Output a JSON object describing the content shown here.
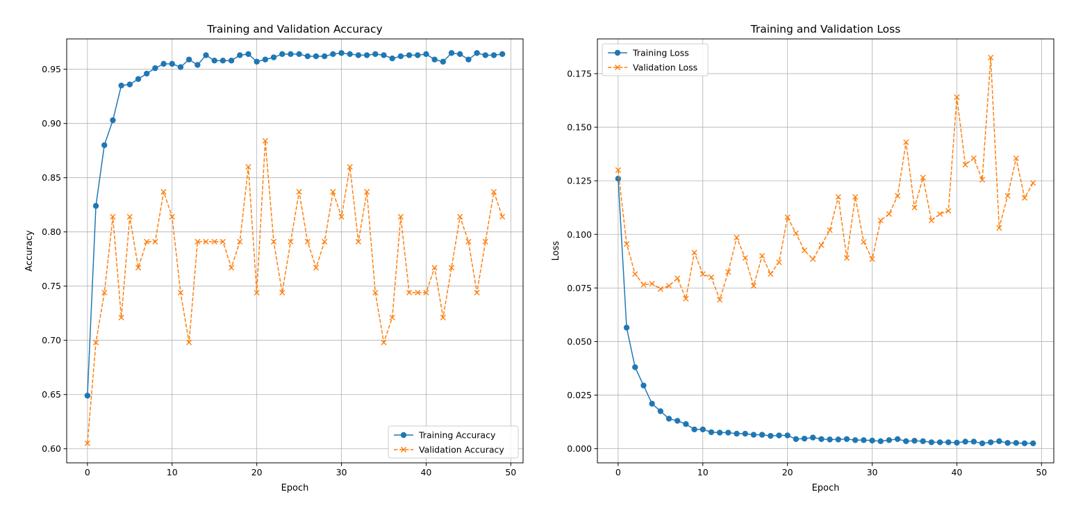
{
  "colors": {
    "training": "#1f77b4",
    "validation": "#ff7f0e",
    "grid": "#b0b0b0",
    "axis": "#000000"
  },
  "chart_data": [
    {
      "type": "line",
      "title": "Training and Validation Accuracy",
      "xlabel": "Epoch",
      "ylabel": "Accuracy",
      "xlim": [
        -2.45,
        51.45
      ],
      "ylim": [
        0.587,
        0.978
      ],
      "xticks": [
        0,
        10,
        20,
        30,
        40,
        50
      ],
      "yticks": [
        0.6,
        0.65,
        0.7,
        0.75,
        0.8,
        0.85,
        0.9,
        0.95
      ],
      "ytick_labels": [
        "0.60",
        "0.65",
        "0.70",
        "0.75",
        "0.80",
        "0.85",
        "0.90",
        "0.95"
      ],
      "grid": true,
      "legend_position": "lower-right",
      "x": [
        0,
        1,
        2,
        3,
        4,
        5,
        6,
        7,
        8,
        9,
        10,
        11,
        12,
        13,
        14,
        15,
        16,
        17,
        18,
        19,
        20,
        21,
        22,
        23,
        24,
        25,
        26,
        27,
        28,
        29,
        30,
        31,
        32,
        33,
        34,
        35,
        36,
        37,
        38,
        39,
        40,
        41,
        42,
        43,
        44,
        45,
        46,
        47,
        48,
        49
      ],
      "series": [
        {
          "name": "Training Accuracy",
          "color_key": "training",
          "marker": "circle",
          "linestyle": "solid",
          "values": [
            0.649,
            0.824,
            0.88,
            0.903,
            0.935,
            0.936,
            0.941,
            0.946,
            0.951,
            0.955,
            0.955,
            0.952,
            0.959,
            0.954,
            0.963,
            0.958,
            0.958,
            0.958,
            0.963,
            0.964,
            0.957,
            0.959,
            0.961,
            0.964,
            0.964,
            0.964,
            0.962,
            0.962,
            0.962,
            0.964,
            0.965,
            0.964,
            0.963,
            0.963,
            0.964,
            0.963,
            0.96,
            0.962,
            0.963,
            0.963,
            0.964,
            0.959,
            0.957,
            0.965,
            0.964,
            0.959,
            0.965,
            0.963,
            0.963,
            0.964
          ]
        },
        {
          "name": "Validation Accuracy",
          "color_key": "validation",
          "marker": "x",
          "linestyle": "dashed",
          "values": [
            0.605,
            0.698,
            0.744,
            0.814,
            0.721,
            0.814,
            0.767,
            0.791,
            0.791,
            0.837,
            0.814,
            0.744,
            0.698,
            0.791,
            0.791,
            0.791,
            0.791,
            0.767,
            0.791,
            0.86,
            0.744,
            0.884,
            0.791,
            0.744,
            0.791,
            0.837,
            0.791,
            0.767,
            0.791,
            0.837,
            0.814,
            0.86,
            0.791,
            0.837,
            0.744,
            0.698,
            0.721,
            0.814,
            0.744,
            0.744,
            0.744,
            0.767,
            0.721,
            0.767,
            0.814,
            0.791,
            0.744,
            0.791,
            0.837,
            0.814
          ]
        }
      ]
    },
    {
      "type": "line",
      "title": "Training and Validation Loss",
      "xlabel": "Epoch",
      "ylabel": "Loss",
      "xlim": [
        -2.45,
        51.45
      ],
      "ylim": [
        -0.0066,
        0.1912
      ],
      "xticks": [
        0,
        10,
        20,
        30,
        40,
        50
      ],
      "yticks": [
        0.0,
        0.025,
        0.05,
        0.075,
        0.1,
        0.125,
        0.15,
        0.175
      ],
      "ytick_labels": [
        "0.000",
        "0.025",
        "0.050",
        "0.075",
        "0.100",
        "0.125",
        "0.150",
        "0.175"
      ],
      "grid": true,
      "legend_position": "upper-left",
      "x": [
        0,
        1,
        2,
        3,
        4,
        5,
        6,
        7,
        8,
        9,
        10,
        11,
        12,
        13,
        14,
        15,
        16,
        17,
        18,
        19,
        20,
        21,
        22,
        23,
        24,
        25,
        26,
        27,
        28,
        29,
        30,
        31,
        32,
        33,
        34,
        35,
        36,
        37,
        38,
        39,
        40,
        41,
        42,
        43,
        44,
        45,
        46,
        47,
        48,
        49
      ],
      "series": [
        {
          "name": "Training Loss",
          "color_key": "training",
          "marker": "circle",
          "linestyle": "solid",
          "values": [
            0.126,
            0.0565,
            0.038,
            0.0295,
            0.021,
            0.0175,
            0.014,
            0.013,
            0.0115,
            0.009,
            0.009,
            0.0077,
            0.0075,
            0.0075,
            0.007,
            0.007,
            0.0065,
            0.0065,
            0.006,
            0.0062,
            0.0062,
            0.0045,
            0.0047,
            0.0052,
            0.0045,
            0.0043,
            0.0043,
            0.0045,
            0.004,
            0.004,
            0.0038,
            0.0035,
            0.004,
            0.0045,
            0.0035,
            0.0037,
            0.0035,
            0.003,
            0.003,
            0.003,
            0.0028,
            0.0033,
            0.0033,
            0.0025,
            0.003,
            0.0035,
            0.0027,
            0.0027,
            0.0025,
            0.0025
          ]
        },
        {
          "name": "Validation Loss",
          "color_key": "validation",
          "marker": "x",
          "linestyle": "dashed",
          "values": [
            0.13,
            0.0955,
            0.0815,
            0.0765,
            0.077,
            0.0745,
            0.076,
            0.0795,
            0.07,
            0.0915,
            0.0815,
            0.08,
            0.0695,
            0.0825,
            0.0985,
            0.089,
            0.076,
            0.09,
            0.0815,
            0.087,
            0.108,
            0.1005,
            0.0925,
            0.0885,
            0.095,
            0.102,
            0.1175,
            0.089,
            0.1175,
            0.0965,
            0.0885,
            0.1065,
            0.1095,
            0.118,
            0.143,
            0.1125,
            0.1265,
            0.1065,
            0.1095,
            0.111,
            0.164,
            0.1325,
            0.1355,
            0.1255,
            0.1825,
            0.103,
            0.118,
            0.1355,
            0.117,
            0.124
          ]
        }
      ]
    }
  ]
}
